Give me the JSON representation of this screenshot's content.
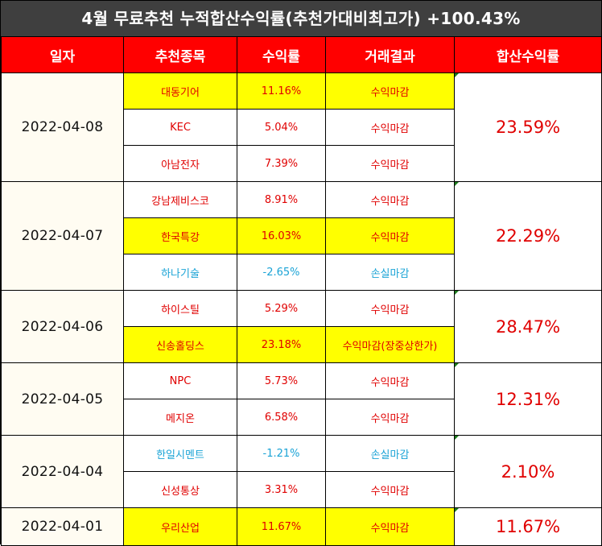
{
  "title": "4월 무료추천 누적합산수익률(추천가대비최고가) +100.43%",
  "headers": [
    "일자",
    "추천종목",
    "수익률",
    "거래결과",
    "합산수익률"
  ],
  "groups": [
    {
      "date": "2022-04-08",
      "total": "23.59%",
      "rows": [
        {
          "stock": "대동기어",
          "rate": "11.16%",
          "result": "수익마감",
          "highlight": true,
          "loss": false
        },
        {
          "stock": "KEC",
          "rate": "5.04%",
          "result": "수익마감",
          "highlight": false,
          "loss": false
        },
        {
          "stock": "아남전자",
          "rate": "7.39%",
          "result": "수익마감",
          "highlight": false,
          "loss": false
        }
      ]
    },
    {
      "date": "2022-04-07",
      "total": "22.29%",
      "rows": [
        {
          "stock": "강남제비스코",
          "rate": "8.91%",
          "result": "수익마감",
          "highlight": false,
          "loss": false
        },
        {
          "stock": "한국특강",
          "rate": "16.03%",
          "result": "수익마감",
          "highlight": true,
          "loss": false
        },
        {
          "stock": "하나기술",
          "rate": "-2.65%",
          "result": "손실마감",
          "highlight": false,
          "loss": true
        }
      ]
    },
    {
      "date": "2022-04-06",
      "total": "28.47%",
      "rows": [
        {
          "stock": "하이스틸",
          "rate": "5.29%",
          "result": "수익마감",
          "highlight": false,
          "loss": false
        },
        {
          "stock": "신송홀딩스",
          "rate": "23.18%",
          "result": "수익마감(장중상한가)",
          "highlight": true,
          "loss": false
        }
      ]
    },
    {
      "date": "2022-04-05",
      "total": "12.31%",
      "rows": [
        {
          "stock": "NPC",
          "rate": "5.73%",
          "result": "수익마감",
          "highlight": false,
          "loss": false
        },
        {
          "stock": "메지온",
          "rate": "6.58%",
          "result": "수익마감",
          "highlight": false,
          "loss": false
        }
      ]
    },
    {
      "date": "2022-04-04",
      "total": "2.10%",
      "rows": [
        {
          "stock": "한일시멘트",
          "rate": "-1.21%",
          "result": "손실마감",
          "highlight": false,
          "loss": true
        },
        {
          "stock": "신성통상",
          "rate": "3.31%",
          "result": "수익마감",
          "highlight": false,
          "loss": false
        }
      ]
    },
    {
      "date": "2022-04-01",
      "total": "11.67%",
      "rows": [
        {
          "stock": "우리산업",
          "rate": "11.67%",
          "result": "수익마감",
          "highlight": true,
          "loss": false
        }
      ]
    }
  ],
  "colors": {
    "header_bg": "#ff0000",
    "title_bg": "#3f3f3f",
    "highlight": "#ffff00",
    "profit": "#e00000",
    "loss": "#1aa3d6"
  }
}
